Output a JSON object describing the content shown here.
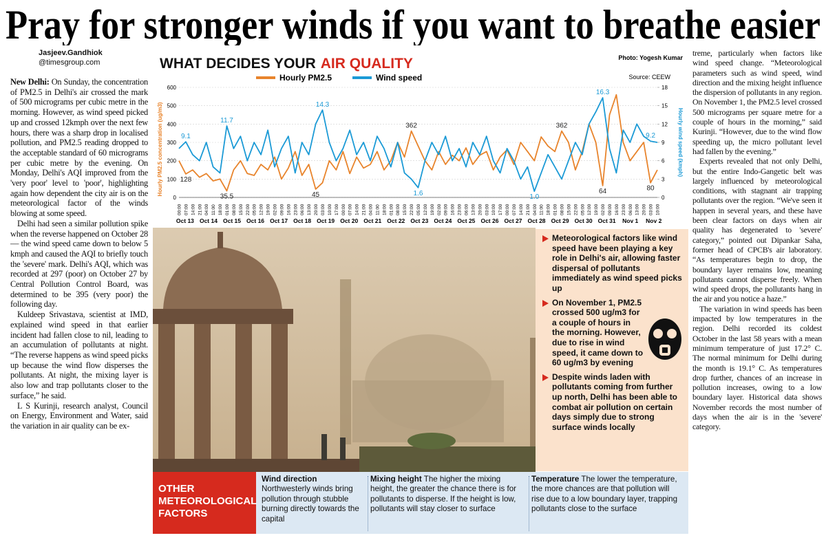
{
  "headline": "Pray for stronger winds if you want to breathe easier",
  "byline": {
    "name": "Jasjeev.Gandhiok",
    "handle": "@timesgroup.com"
  },
  "left_column": {
    "dateline": "New Delhi:",
    "paragraphs": [
      "On Sunday, the concentration of PM2.5 in Delhi's air crossed the mark of 500 micrograms per cubic metre in the morning. However, as wind speed picked up and crossed 12kmph over the next few hours, there was a sharp drop in localised pollution, and PM2.5 reading dropped to the acceptable standard of 60 micrograms per cubic metre by the evening. On Monday, Delhi's AQI improved from the 'very poor' level to 'poor', highlighting again how dependent the city air is on the meteorological factor of the winds blowing at some speed.",
      "Delhi had seen a similar pollution spike when the reverse happened on October 28 — the wind speed came down to below 5 kmph and caused the AQI to briefly touch the 'severe' mark. Delhi's AQI, which was recorded at 297 (poor) on October 27 by Central Pollution Control Board, was determined to be 395 (very poor) the following day.",
      "Kuldeep Srivastava, scientist at IMD, explained wind speed in that earlier incident had fallen close to nil, leading to an accumulation of pollutants at night. “The reverse happens as wind speed picks up because the wind flow disperses the pollutants. At night, the mixing layer is also low and trap pollutants closer to the surface,” he said.",
      "L S Kurinji, research analyst, Council on Energy, Environment and Water, said the variation in air quality can be ex-"
    ]
  },
  "right_column": {
    "paragraphs": [
      "treme, particularly when factors like wind speed change. “Meteorological parameters such as wind speed, wind direction and the mixing height influence the dispersion of pollutants in any region. On November 1, the PM2.5 level crossed 500 micrograms per square metre for a couple of hours in the morning,” said Kurinji. “However, due to the wind flow speeding up, the micro pollutant level had fallen by the evening.”",
      "Experts revealed that not only Delhi, but the entire Indo-Gangetic belt was largely influenced by meteorological conditions, with stagnant air trapping pollutants over the region. “We've seen it happen in several years, and these have been clear factors on days when air quality has degenerated to 'severe' category,” pointed out Dipankar Saha, former head of CPCB's air laboratory. “As temperatures begin to drop, the boundary layer remains low, meaning pollutants cannot disperse freely. When wind speed drops, the pollutants hang in the air and you notice a haze.”",
      "The variation in wind speeds has been impacted by low temperatures in the region. Delhi recorded its coldest October in the last 58 years with a mean minimum temperature of just 17.2° C. The normal minimum for Delhi during the month is 19.1° C. As temperatures drop further, chances of an increase in pollution increases, owing to a low boundary layer. Historical data shows November records the most number of days when the air is in the 'severe' category."
    ]
  },
  "photo_credit": "Photo: Yogesh Kumar",
  "chart_data": {
    "type": "line",
    "title": "WHAT DECIDES YOUR",
    "title_highlight": "AIR QUALITY",
    "source": "Source: CEEW",
    "ylabel": "Hourly PM2.5 concentration (ug/m3)",
    "y2label": "Hourly wind speed (kmph)",
    "categories": [
      "00:00",
      "07:00",
      "14:00",
      "21:00",
      "04:00",
      "11:00",
      "18:00",
      "01:00",
      "08:00",
      "15:00",
      "22:00",
      "05:00",
      "12:00",
      "19:00",
      "02:00",
      "09:00",
      "16:00",
      "23:00",
      "06:00",
      "13:00",
      "20:00",
      "03:00",
      "10:00",
      "17:00",
      "00:00",
      "07:00",
      "14:00",
      "21:00",
      "04:00",
      "11:00",
      "18:00",
      "01:00",
      "08:00",
      "15:00",
      "22:00",
      "05:00",
      "12:00",
      "19:00",
      "02:00",
      "09:00",
      "16:00",
      "23:00",
      "06:00",
      "13:00",
      "20:00",
      "03:00",
      "10:00",
      "17:00",
      "00:00",
      "07:00",
      "14:00",
      "21:00",
      "04:00",
      "11:00",
      "18:00",
      "01:00",
      "08:00",
      "15:00",
      "22:00",
      "05:00",
      "12:00",
      "19:00",
      "02:00",
      "09:00",
      "16:00",
      "23:00",
      "06:00",
      "13:00",
      "20:00",
      "03:00",
      "10:00"
    ],
    "day_labels": [
      "Oct 13",
      "Oct 14",
      "Oct 15",
      "Oct 16",
      "Oct 17",
      "Oct 18",
      "Oct 19",
      "Oct 20",
      "Oct 21",
      "Oct 22",
      "Oct 23",
      "Oct 24",
      "Oct 25",
      "Oct 26",
      "Oct 27",
      "Oct 28",
      "Oct 29",
      "Oct 30",
      "Oct 31",
      "Nov 1",
      "Nov 2"
    ],
    "series": [
      {
        "name": "Hourly PM2.5",
        "color": "#e8842c",
        "values": [
          200,
          128,
          150,
          110,
          130,
          90,
          100,
          35.5,
          150,
          200,
          130,
          120,
          180,
          150,
          220,
          100,
          160,
          250,
          120,
          180,
          45,
          80,
          200,
          150,
          250,
          130,
          220,
          160,
          180,
          250,
          150,
          200,
          300,
          220,
          362,
          280,
          200,
          150,
          250,
          180,
          230,
          200,
          270,
          180,
          230,
          250,
          150,
          220,
          260,
          180,
          300,
          250,
          200,
          330,
          280,
          250,
          362,
          300,
          150,
          250,
          400,
          300,
          64,
          450,
          560,
          300,
          200,
          250,
          300,
          80,
          150
        ],
        "value_labels": [
          null,
          "128",
          null,
          null,
          null,
          null,
          null,
          "35.5",
          null,
          null,
          null,
          null,
          null,
          null,
          null,
          null,
          null,
          null,
          null,
          null,
          "45",
          null,
          null,
          null,
          null,
          null,
          null,
          null,
          null,
          null,
          null,
          null,
          null,
          null,
          "362",
          null,
          null,
          null,
          null,
          null,
          null,
          null,
          null,
          null,
          null,
          null,
          null,
          null,
          null,
          null,
          null,
          null,
          null,
          null,
          null,
          null,
          "362",
          null,
          null,
          null,
          null,
          null,
          "64",
          null,
          null,
          null,
          null,
          null,
          null,
          "80",
          null
        ]
      },
      {
        "name": "Wind speed",
        "color": "#1b9ad6",
        "axis": "y2",
        "values": [
          8,
          9.1,
          7,
          6,
          9,
          5,
          4,
          11.7,
          8,
          10,
          6,
          9,
          7,
          11,
          5,
          8,
          10,
          4,
          9,
          7,
          12,
          14.3,
          9,
          6,
          8,
          11,
          7,
          9,
          6,
          10,
          8,
          5,
          9,
          4,
          3,
          1.6,
          6,
          9,
          7,
          10,
          6,
          8,
          5,
          9,
          7,
          10,
          6,
          4,
          8,
          6,
          3,
          5,
          1.0,
          4,
          7,
          5,
          3,
          6,
          9,
          7,
          12,
          14,
          16.3,
          8,
          4,
          11,
          9,
          12,
          10,
          9.2,
          9
        ],
        "value_labels": [
          null,
          "9.1",
          null,
          null,
          null,
          null,
          null,
          "11.7",
          null,
          null,
          null,
          null,
          null,
          null,
          null,
          null,
          null,
          null,
          null,
          null,
          null,
          "14.3",
          null,
          null,
          null,
          null,
          null,
          null,
          null,
          null,
          null,
          null,
          null,
          null,
          null,
          "1.6",
          null,
          null,
          null,
          null,
          null,
          null,
          null,
          null,
          null,
          null,
          null,
          null,
          null,
          null,
          null,
          null,
          "1.0",
          null,
          null,
          null,
          null,
          null,
          null,
          null,
          null,
          null,
          "16.3",
          null,
          null,
          null,
          null,
          null,
          null,
          "9.2",
          null
        ]
      }
    ],
    "ylim": [
      0,
      600
    ],
    "yticks": [
      0,
      100,
      200,
      300,
      400,
      500,
      600
    ],
    "y2lim": [
      0,
      18
    ],
    "y2ticks": [
      0,
      3,
      6,
      9,
      12,
      15,
      18
    ],
    "grid": true
  },
  "callouts": [
    "Meteorological factors like wind speed have been playing a key role in Delhi's air, allowing faster dispersal of pollutants immediately as wind speed picks up",
    "On November 1, PM2.5 crossed 500 ug/m3 for a couple of hours in the morning. However, due to rise in wind speed, it came down to 60 ug/m3 by evening",
    "Despite winds laden with pollutants coming from further up north, Delhi has been able to combat air pollution on certain days simply due to strong surface winds locally"
  ],
  "factors_box": {
    "title": "OTHER METEOROLOGICAL FACTORS",
    "items": [
      {
        "heading": "Wind direction",
        "text": "Northwesterly winds bring pollution through stubble burning directly towards the capital"
      },
      {
        "heading": "Mixing height",
        "text": "The higher the mixing height, the greater the chance there is for pollutants to disperse. If the height is low, pollutants will stay closer to surface"
      },
      {
        "heading": "Temperature",
        "text": "The lower the temperature, the more chances are that pollution will rise due to a low boundary layer, trapping pollutants close to the surface"
      }
    ]
  }
}
